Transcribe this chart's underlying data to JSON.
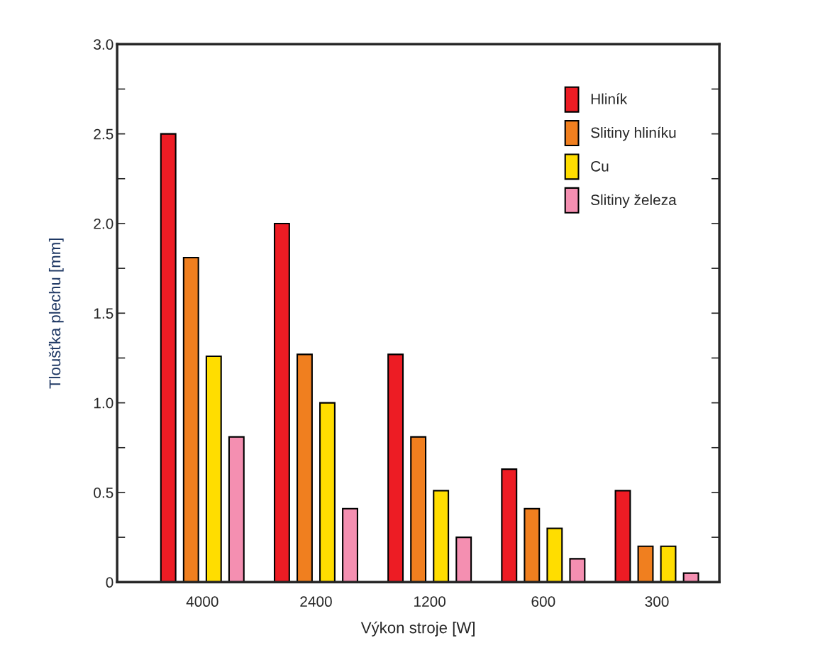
{
  "chart_data": {
    "type": "bar",
    "xlabel": "Výkon stroje [W]",
    "ylabel": "Tloušťka plechu [mm]",
    "categories": [
      "4000",
      "2400",
      "1200",
      "600",
      "300"
    ],
    "series": [
      {
        "name": "Hliník",
        "color": "#ed1c24",
        "values": [
          2.5,
          2.0,
          1.27,
          0.63,
          0.51
        ]
      },
      {
        "name": "Slitiny hliníku",
        "color": "#f07f1f",
        "values": [
          1.81,
          1.27,
          0.81,
          0.41,
          0.2
        ]
      },
      {
        "name": "Cu",
        "color": "#ffdd00",
        "values": [
          1.26,
          1.0,
          0.51,
          0.3,
          0.2
        ]
      },
      {
        "name": "Slitiny železa",
        "color": "#f48fb1",
        "values": [
          0.81,
          0.41,
          0.25,
          0.13,
          0.05
        ]
      }
    ],
    "ylim": [
      0,
      3.0
    ],
    "yticks": [
      0,
      {
        "value": 0.25,
        "label": null
      },
      0.5,
      {
        "value": 0.75,
        "label": null
      },
      {
        "value": 1,
        "label": "1.0"
      },
      {
        "value": 1.25,
        "label": null
      },
      1.5,
      {
        "value": 1.75,
        "label": null
      },
      {
        "value": 2,
        "label": "2.0"
      },
      {
        "value": 2.25,
        "label": null
      },
      2.5,
      {
        "value": 2.75,
        "label": null
      },
      {
        "value": 3,
        "label": "3.0"
      }
    ],
    "grid": false,
    "legend": "top right"
  }
}
